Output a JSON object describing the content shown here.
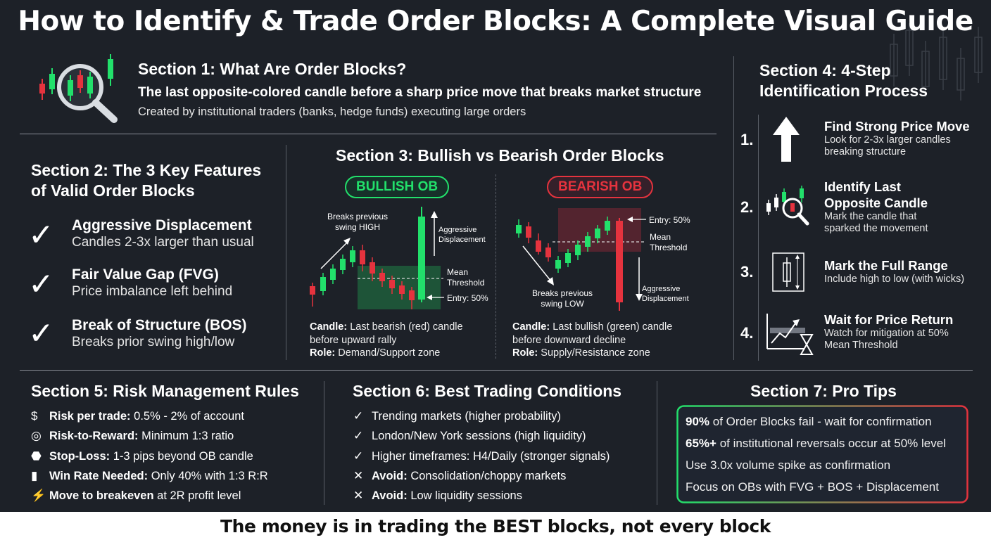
{
  "title": "How to Identify & Trade Order Blocks: A Complete Visual Guide",
  "section1": {
    "heading": "Section 1: What Are Order Blocks?",
    "definition": "The last opposite-colored candle before a sharp price move that breaks market structure",
    "origin": "Created by institutional traders (banks, hedge funds) executing large orders",
    "icon": "magnifier-candles-icon"
  },
  "section2": {
    "heading_line1": "Section 2: The 3 Key Features",
    "heading_line2": "of Valid Order Blocks",
    "features": [
      {
        "title": "Aggressive Displacement",
        "desc": "Candles 2-3x larger than usual"
      },
      {
        "title": "Fair Value Gap (FVG)",
        "desc": "Price imbalance left behind"
      },
      {
        "title": "Break of Structure (BOS)",
        "desc": "Breaks prior swing high/low"
      }
    ]
  },
  "section3": {
    "heading": "Section 3: Bullish vs Bearish Order Blocks",
    "bullish": {
      "badge": "BULLISH OB",
      "label_swing_1": "Breaks previous",
      "label_swing_2": "swing HIGH",
      "label_disp_1": "Aggressive",
      "label_disp_2": "Displacement",
      "label_mean_1": "Mean",
      "label_mean_2": "Threshold",
      "label_entry": "Entry: 50%",
      "candle_label": "Candle:",
      "candle_text": "Last bearish (red) candle",
      "candle_text_2": "before upward rally",
      "role_label": "Role:",
      "role_text": "Demand/Support zone"
    },
    "bearish": {
      "badge": "BEARISH OB",
      "label_swing_1": "Breaks previous",
      "label_swing_2": "swing LOW",
      "label_disp_1": "Aggressive",
      "label_disp_2": "Displacement",
      "label_mean_1": "Mean",
      "label_mean_2": "Threshold",
      "label_entry": "Entry: 50%",
      "candle_label": "Candle:",
      "candle_text": "Last bullish (green) candle",
      "candle_text_2": "before downward decline",
      "role_label": "Role:",
      "role_text": "Supply/Resistance zone"
    }
  },
  "section4": {
    "heading_line1": "Section 4: 4-Step",
    "heading_line2": "Identification Process",
    "steps": [
      {
        "num": "1.",
        "title": "Find Strong Price Move",
        "desc1": "Look for 2-3x larger candles",
        "desc2": "breaking structure",
        "icon": "up-arrow-icon"
      },
      {
        "num": "2.",
        "title": "Identify Last",
        "title2": "Opposite Candle",
        "desc1": "Mark the candle that",
        "desc2": "sparked the movement",
        "icon": "magnifier-candles-icon"
      },
      {
        "num": "3.",
        "title": "Mark the Full Range",
        "desc1": "Include high to low (with wicks)",
        "icon": "candle-range-icon"
      },
      {
        "num": "4.",
        "title": "Wait for Price Return",
        "desc1": "Watch for mitigation at 50%",
        "desc2": "Mean Threshold",
        "icon": "hourglass-chart-icon"
      }
    ]
  },
  "section5": {
    "heading": "Section 5: Risk Management Rules",
    "rules": [
      {
        "icon": "money-bag-icon",
        "glyph": "$",
        "label": "Risk per trade:",
        "text": "0.5% - 2% of account"
      },
      {
        "icon": "target-icon",
        "glyph": "◎",
        "label": "Risk-to-Reward:",
        "text": "Minimum 1:3 ratio"
      },
      {
        "icon": "stop-sign-icon",
        "glyph": "⬣",
        "label": "Stop-Loss:",
        "text": "1-3 pips beyond OB candle"
      },
      {
        "icon": "bar-chart-icon",
        "glyph": "▮",
        "label": "Win Rate Needed:",
        "text": "Only 40% with 1:3 R:R"
      },
      {
        "icon": "lightning-icon",
        "glyph": "⚡",
        "label": "Move to breakeven",
        "text": "at 2R profit level"
      }
    ]
  },
  "section6": {
    "heading": "Section 6: Best Trading Conditions",
    "items": [
      {
        "mark": "✓",
        "label": "",
        "text": "Trending markets (higher probability)"
      },
      {
        "mark": "✓",
        "label": "",
        "text": "London/New York sessions (high liquidity)"
      },
      {
        "mark": "✓",
        "label": "",
        "text": "Higher timeframes: H4/Daily (stronger signals)"
      },
      {
        "mark": "✕",
        "label": "Avoid:",
        "text": "Consolidation/choppy markets"
      },
      {
        "mark": "✕",
        "label": "Avoid:",
        "text": "Low liquidity sessions"
      }
    ]
  },
  "section7": {
    "heading": "Section 7: Pro Tips",
    "tips": [
      {
        "bold": "90%",
        "text": "of Order Blocks fail - wait for confirmation"
      },
      {
        "bold": "65%+",
        "text": "of institutional reversals occur at 50% level"
      },
      {
        "bold": "",
        "text": "Use 3.0x volume spike as confirmation"
      },
      {
        "bold": "",
        "text": "Focus on OBs with FVG + BOS + Displacement"
      }
    ]
  },
  "footer": "The money is in trading the BEST blocks, not every block",
  "colors": {
    "green": "#22e06b",
    "red": "#e5333e",
    "background": "#1d2128",
    "zone_green": "#1f5a3a",
    "zone_red": "#5a2530"
  }
}
